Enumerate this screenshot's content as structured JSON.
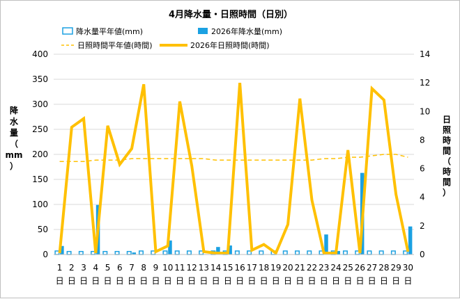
{
  "chart_data": {
    "type": "bar",
    "title": "4月降水量・日照時間（日別）",
    "categories": [
      "1",
      "2",
      "3",
      "4",
      "5",
      "6",
      "7",
      "8",
      "9",
      "10",
      "11",
      "12",
      "13",
      "14",
      "15",
      "16",
      "17",
      "18",
      "19",
      "20",
      "21",
      "22",
      "23",
      "24",
      "25",
      "26",
      "27",
      "28",
      "29",
      "30"
    ],
    "category_suffix": "日",
    "y_left": {
      "label": [
        "降",
        "水",
        "量",
        "（",
        "mm",
        "）"
      ],
      "ylim": [
        0,
        400
      ],
      "ticks": [
        0,
        50,
        100,
        150,
        200,
        250,
        300,
        350,
        400
      ]
    },
    "y_right": {
      "label": [
        "日",
        "照",
        "時",
        "間",
        "（",
        "時",
        "間",
        "）"
      ],
      "ylim": [
        0,
        14
      ],
      "ticks": [
        0,
        2,
        4,
        6,
        8,
        10,
        12,
        14
      ]
    },
    "series": [
      {
        "name": "降水量平年値(mm)",
        "type": "bar-outline",
        "axis": "left",
        "color": "#1BA1E2",
        "values": [
          7,
          6,
          6,
          6,
          6,
          6,
          6,
          7,
          7,
          7,
          7,
          7,
          7,
          7,
          7,
          7,
          7,
          7,
          7,
          7,
          7,
          7,
          7,
          7,
          7,
          7,
          7,
          7,
          7,
          7
        ]
      },
      {
        "name": "2026年降水量(mm)",
        "type": "bar",
        "axis": "left",
        "color": "#1BA1E2",
        "values": [
          17,
          0,
          0,
          99,
          0,
          0,
          4,
          0,
          0,
          28,
          0,
          0,
          0,
          15,
          18,
          0,
          0,
          0,
          0,
          0,
          0,
          0,
          40,
          7,
          0,
          163,
          0,
          0,
          0,
          56
        ]
      },
      {
        "name": "日照時間平年値(時間)",
        "type": "line-dashed",
        "axis": "right",
        "color": "#FFC000",
        "values": [
          6.5,
          6.5,
          6.5,
          6.6,
          6.6,
          6.6,
          6.7,
          6.7,
          6.7,
          6.7,
          6.7,
          6.7,
          6.7,
          6.6,
          6.6,
          6.6,
          6.6,
          6.6,
          6.6,
          6.6,
          6.6,
          6.6,
          6.7,
          6.7,
          6.8,
          6.8,
          6.9,
          7.0,
          7.0,
          6.8
        ]
      },
      {
        "name": "2026年日照時間(時間)",
        "type": "line",
        "axis": "right",
        "color": "#FFC000",
        "values": [
          0.1,
          8.9,
          9.5,
          0.1,
          9.0,
          6.3,
          7.4,
          11.9,
          0.2,
          0.6,
          10.7,
          6.2,
          0.2,
          0.1,
          0.1,
          12.0,
          0.3,
          0.7,
          0.1,
          2.1,
          10.9,
          3.8,
          0.1,
          0.1,
          7.3,
          0.1,
          11.6,
          10.8,
          4.2,
          0.2
        ]
      }
    ],
    "grid": true,
    "legend_position": "top"
  }
}
